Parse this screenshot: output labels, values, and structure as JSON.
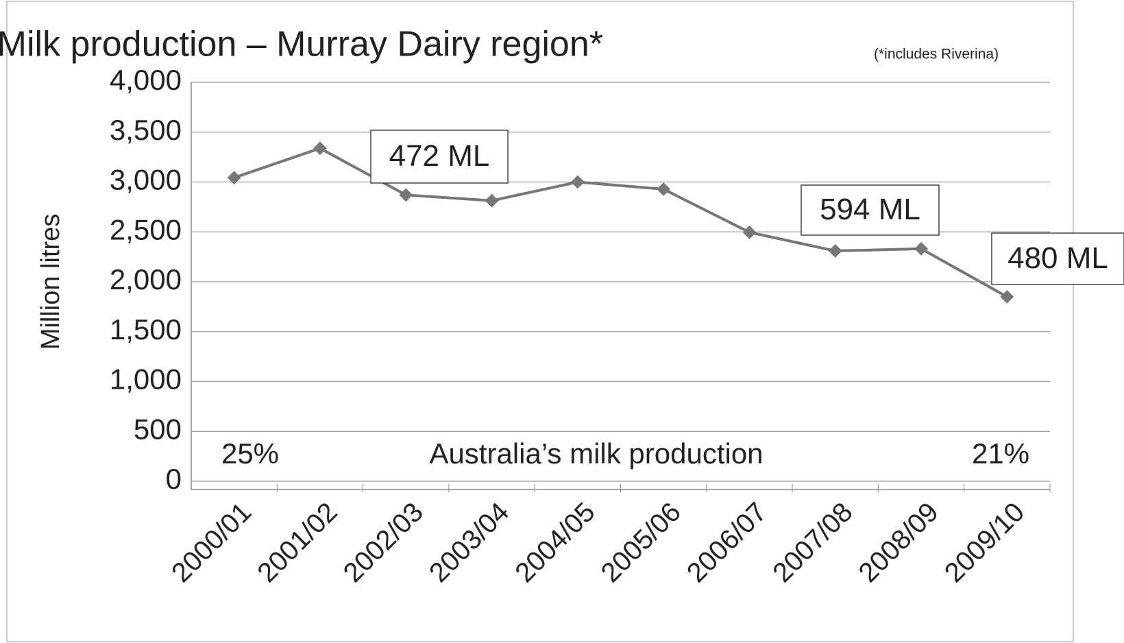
{
  "chart_data": {
    "type": "line",
    "title": "Milk production – Murray Dairy region*",
    "subtitle": "(*includes Riverina)",
    "y_label": "Million litres",
    "categories": [
      "2000/01",
      "2001/02",
      "2002/03",
      "2003/04",
      "2004/05",
      "2005/06",
      "2006/07",
      "2007/08",
      "2008/09",
      "2009/10"
    ],
    "series": [
      {
        "name": "Milk production",
        "color": "#777777",
        "values": [
          3043,
          3338,
          2870,
          2813,
          3000,
          2928,
          2496,
          2309,
          2331,
          1849
        ]
      }
    ],
    "ylim": [
      0,
      4000
    ],
    "yticks": [
      0,
      500,
      {
        "value": 1000,
        "label": "1,000"
      },
      {
        "value": 1500,
        "label": "1,500"
      },
      {
        "value": 2000,
        "label": "2,000"
      },
      {
        "value": 2500,
        "label": "2,500"
      },
      {
        "value": 3000,
        "label": "3,000"
      },
      {
        "value": 3500,
        "label": "3,500"
      },
      {
        "value": 4000,
        "label": "4,000"
      }
    ],
    "grid": true,
    "annotations": [
      "472 ML",
      "594 ML",
      "480 ML",
      "25%",
      "Australia’s milk production",
      "21%"
    ]
  }
}
